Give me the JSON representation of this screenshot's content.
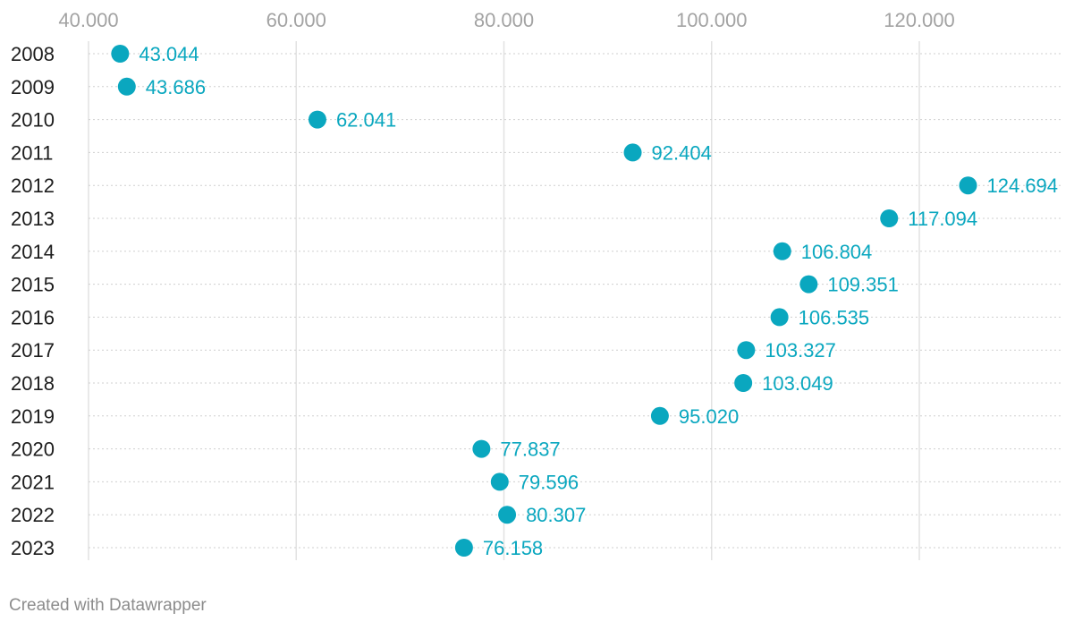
{
  "chart_data": {
    "type": "scatter",
    "title": "",
    "xlabel": "",
    "ylabel": "",
    "xlim": [
      37000,
      134000
    ],
    "x_ticks": [
      40000,
      60000,
      80000,
      100000,
      120000
    ],
    "x_tick_labels": [
      "40.000",
      "60.000",
      "80.000",
      "100.000",
      "120.000"
    ],
    "categories": [
      "2008",
      "2009",
      "2010",
      "2011",
      "2012",
      "2013",
      "2014",
      "2015",
      "2016",
      "2017",
      "2018",
      "2019",
      "2020",
      "2021",
      "2022",
      "2023"
    ],
    "values": [
      43044,
      43686,
      62041,
      92404,
      124694,
      117094,
      106804,
      109351,
      106535,
      103327,
      103049,
      95020,
      77837,
      79596,
      80307,
      76158
    ],
    "value_labels": [
      "43.044",
      "43.686",
      "62.041",
      "92.404",
      "124.694",
      "117.094",
      "106.804",
      "109.351",
      "106.535",
      "103.327",
      "103.049",
      "95.020",
      "77.837",
      "79.596",
      "80.307",
      "76.158"
    ],
    "grid": true,
    "legend": "none",
    "color": "#0aa7bf"
  },
  "footer": {
    "credit": "Created with Datawrapper"
  }
}
